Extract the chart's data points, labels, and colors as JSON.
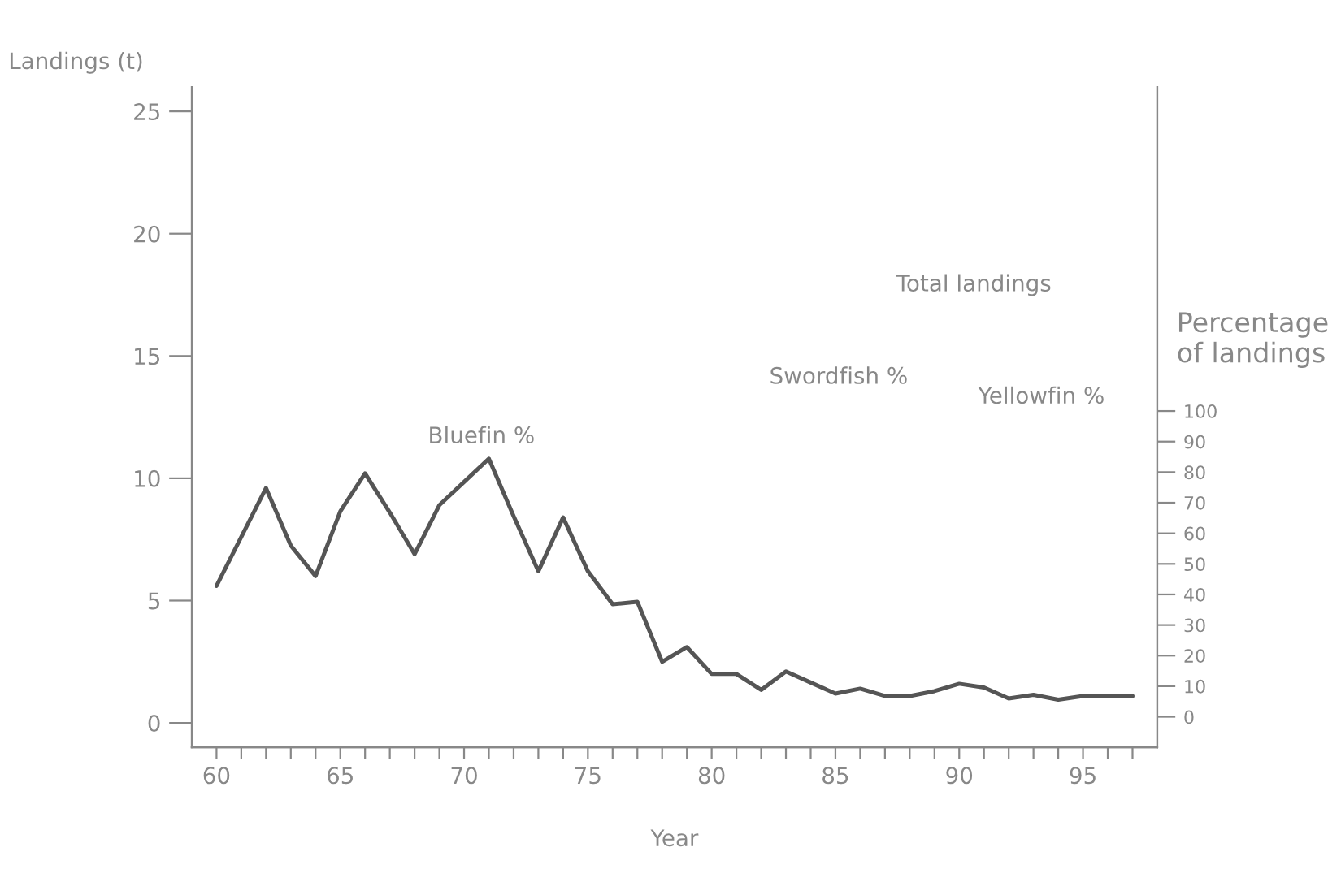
{
  "chart_data": {
    "type": "line",
    "xlabel": "Year",
    "ylabel": "Landings (t)",
    "y2label": "Percentage\nof landings",
    "x": [
      60,
      61,
      62,
      63,
      64,
      65,
      66,
      67,
      68,
      69,
      70,
      71,
      72,
      73,
      74,
      75,
      76,
      77,
      78,
      79,
      80,
      81,
      82,
      83,
      84,
      85,
      86,
      87,
      88,
      89,
      90,
      91,
      92,
      93,
      94,
      95,
      96,
      97
    ],
    "series": [
      {
        "color": "#555555",
        "values": [
          5.6,
          7.6,
          9.6,
          7.25,
          6.0,
          8.65,
          10.2,
          8.6,
          6.9,
          8.9,
          9.85,
          10.8,
          8.45,
          6.2,
          8.4,
          6.2,
          4.85,
          4.95,
          2.5,
          3.1,
          2.0,
          2.0,
          1.35,
          2.1,
          1.65,
          1.2,
          1.4,
          1.1,
          1.1,
          1.3,
          1.6,
          1.45,
          1.0,
          1.15,
          0.95,
          1.1,
          1.1,
          1.1
        ]
      }
    ],
    "xlim": [
      59,
      98
    ],
    "xticks": [
      60,
      {
        "value": 61,
        "label": null
      },
      {
        "value": 62,
        "label": null
      },
      {
        "value": 63,
        "label": null
      },
      {
        "value": 64,
        "label": null
      },
      65,
      {
        "value": 66,
        "label": null
      },
      {
        "value": 67,
        "label": null
      },
      {
        "value": 68,
        "label": null
      },
      {
        "value": 69,
        "label": null
      },
      70,
      {
        "value": 71,
        "label": null
      },
      {
        "value": 72,
        "label": null
      },
      {
        "value": 73,
        "label": null
      },
      {
        "value": 74,
        "label": null
      },
      75,
      {
        "value": 76,
        "label": null
      },
      {
        "value": 77,
        "label": null
      },
      {
        "value": 78,
        "label": null
      },
      {
        "value": 79,
        "label": null
      },
      80,
      {
        "value": 81,
        "label": null
      },
      {
        "value": 82,
        "label": null
      },
      {
        "value": 83,
        "label": null
      },
      {
        "value": 84,
        "label": null
      },
      85,
      {
        "value": 86,
        "label": null
      },
      {
        "value": 87,
        "label": null
      },
      {
        "value": 88,
        "label": null
      },
      {
        "value": 89,
        "label": null
      },
      90,
      {
        "value": 91,
        "label": null
      },
      {
        "value": 92,
        "label": null
      },
      {
        "value": 93,
        "label": null
      },
      {
        "value": 94,
        "label": null
      },
      95,
      {
        "value": 96,
        "label": null
      },
      {
        "value": 97,
        "label": null
      }
    ],
    "ylim": [
      -1,
      26
    ],
    "yticks": [
      0,
      5,
      10,
      15,
      20,
      25
    ],
    "y2lim": [
      -10,
      206
    ],
    "y2ticks": [
      0,
      10,
      20,
      30,
      40,
      50,
      60,
      70,
      80,
      90,
      100
    ],
    "annotations": [
      "Bluefin %",
      "Total landings",
      "Swordfish %",
      "Yellowfin %"
    ],
    "grid": false,
    "legend": false,
    "marker": "none",
    "line_style": "solid"
  }
}
